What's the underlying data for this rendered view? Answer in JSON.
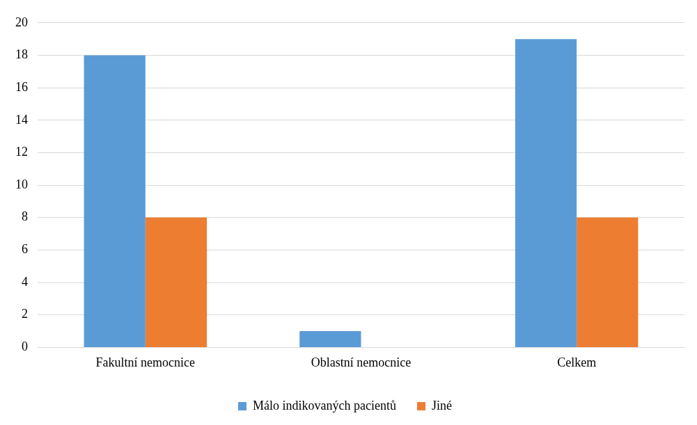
{
  "chart_data": {
    "type": "bar",
    "categories": [
      "Fakultní nemocnice",
      "Oblastní nemocnice",
      "Celkem"
    ],
    "series": [
      {
        "name": "Málo indikovaných pacientů",
        "color": "#5b9bd5",
        "values": [
          18,
          1,
          19
        ]
      },
      {
        "name": "Jiné",
        "color": "#ed7d31",
        "values": [
          8,
          0,
          8
        ]
      }
    ],
    "ylim": [
      0,
      20
    ],
    "yticks": [
      0,
      2,
      4,
      6,
      8,
      10,
      12,
      14,
      16,
      18,
      20
    ],
    "grid": "y",
    "legend": "bottom"
  }
}
